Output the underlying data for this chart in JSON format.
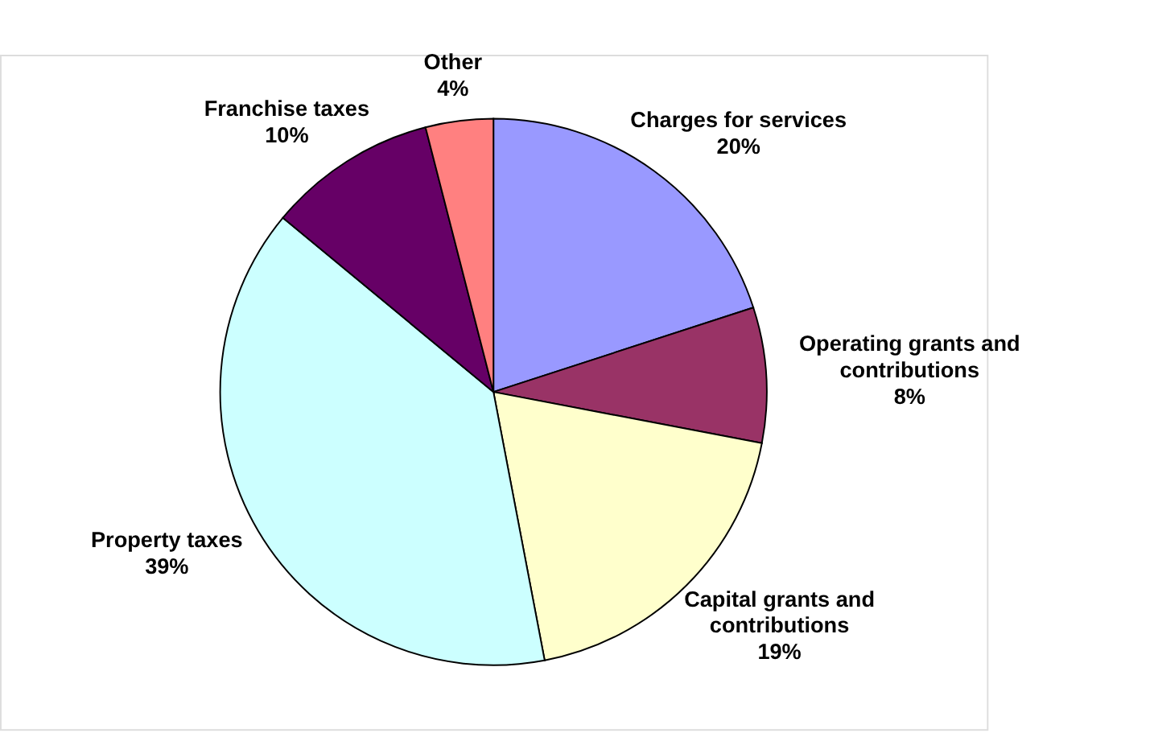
{
  "chart_data": {
    "type": "pie",
    "categories": [
      "Charges for services",
      "Operating grants and contributions",
      "Capital grants and contributions",
      "Property taxes",
      "Franchise taxes",
      "Other"
    ],
    "values": [
      20,
      8,
      19,
      39,
      10,
      4
    ],
    "value_labels": [
      "20%",
      "8%",
      "19%",
      "39%",
      "10%",
      "4%"
    ],
    "colors": [
      "#9999ff",
      "#993366",
      "#ffffcc",
      "#ccffff",
      "#660066",
      "#ff8080"
    ],
    "legend": false
  }
}
